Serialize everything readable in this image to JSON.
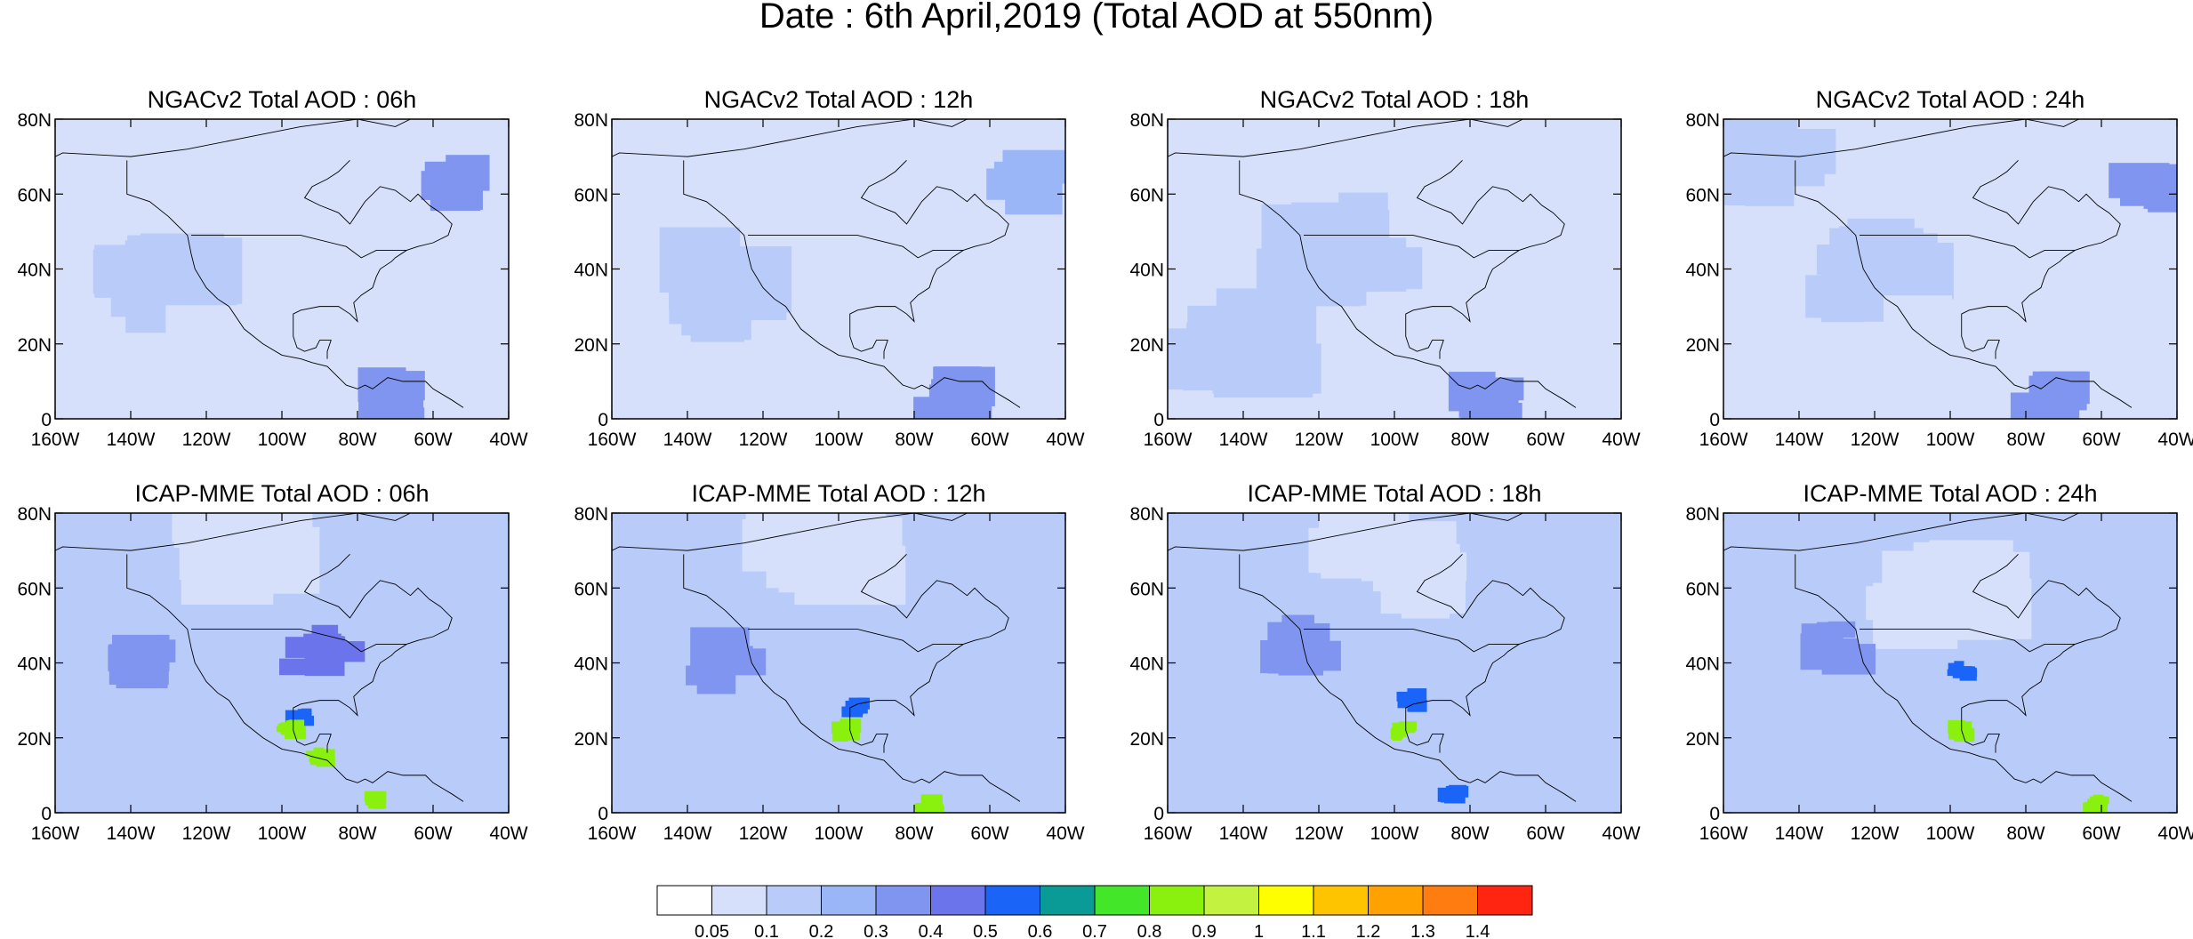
{
  "figure": {
    "title": "Date : 6th April,2019 (Total AOD at 550nm)"
  },
  "axes": {
    "lat_ticks": [
      "80N",
      "60N",
      "40N",
      "20N",
      "0"
    ],
    "lon_ticks": [
      "160W",
      "140W",
      "120W",
      "100W",
      "80W",
      "60W",
      "40W"
    ],
    "lat_range": [
      0,
      80
    ],
    "lon_range": [
      -160,
      -40
    ]
  },
  "panels": [
    {
      "title": "NGACv2 Total AOD : 06h",
      "model": "NGACv2",
      "lead": "06h"
    },
    {
      "title": "NGACv2 Total AOD : 12h",
      "model": "NGACv2",
      "lead": "12h"
    },
    {
      "title": "NGACv2 Total AOD : 18h",
      "model": "NGACv2",
      "lead": "18h"
    },
    {
      "title": "NGACv2 Total AOD : 24h",
      "model": "NGACv2",
      "lead": "24h"
    },
    {
      "title": "ICAP-MME Total AOD : 06h",
      "model": "ICAP-MME",
      "lead": "06h"
    },
    {
      "title": "ICAP-MME Total AOD : 12h",
      "model": "ICAP-MME",
      "lead": "12h"
    },
    {
      "title": "ICAP-MME Total AOD : 18h",
      "model": "ICAP-MME",
      "lead": "18h"
    },
    {
      "title": "ICAP-MME Total AOD : 24h",
      "model": "ICAP-MME",
      "lead": "24h"
    }
  ],
  "colorbar": {
    "labels": [
      "0.05",
      "0.1",
      "0.2",
      "0.3",
      "0.4",
      "0.5",
      "0.6",
      "0.7",
      "0.8",
      "0.9",
      "1",
      "1.1",
      "1.2",
      "1.3",
      "1.4"
    ],
    "colors": [
      "#ffffff",
      "#d6e0fb",
      "#b9cbf8",
      "#9bb6f6",
      "#8095f0",
      "#6c74ec",
      "#1a64f8",
      "#0a9b96",
      "#44e62a",
      "#8af00e",
      "#c3f241",
      "#fffe00",
      "#ffc400",
      "#ffa100",
      "#ff7d10",
      "#ff2510"
    ]
  },
  "chart_data": {
    "type": "heatmap",
    "title": "Date : 6th April,2019 (Total AOD at 550nm)",
    "variable": "Total AOD at 550nm",
    "x_ticks": [
      "160W",
      "140W",
      "120W",
      "100W",
      "80W",
      "60W",
      "40W"
    ],
    "y_ticks": [
      "80N",
      "60N",
      "40N",
      "20N",
      "0"
    ],
    "xlim": [
      -160,
      -40
    ],
    "ylim": [
      0,
      80
    ],
    "levels": [
      0.05,
      0.1,
      0.2,
      0.3,
      0.4,
      0.5,
      0.6,
      0.7,
      0.8,
      0.9,
      1,
      1.1,
      1.2,
      1.3,
      1.4
    ],
    "panels": [
      {
        "name": "NGACv2 Total AOD : 06h",
        "features": [
          {
            "lon": -140,
            "lat": 65,
            "aod": 0.05
          },
          {
            "lon": -100,
            "lat": 60,
            "aod": 0.05
          },
          {
            "lon": -130,
            "lat": 35,
            "aod": 0.15
          },
          {
            "lon": -70,
            "lat": 45,
            "aod": 0.05
          },
          {
            "lon": -55,
            "lat": 62,
            "aod": 0.3
          },
          {
            "lon": -110,
            "lat": 15,
            "aod": 0.05
          },
          {
            "lon": -70,
            "lat": 5,
            "aod": 0.3
          }
        ]
      },
      {
        "name": "NGACv2 Total AOD : 12h",
        "features": [
          {
            "lon": -125,
            "lat": 68,
            "aod": 0.05
          },
          {
            "lon": -130,
            "lat": 35,
            "aod": 0.15
          },
          {
            "lon": -60,
            "lat": 35,
            "aod": 0.05
          },
          {
            "lon": -50,
            "lat": 63,
            "aod": 0.25
          },
          {
            "lon": -110,
            "lat": 12,
            "aod": 0.05
          },
          {
            "lon": -72,
            "lat": 5,
            "aod": 0.3
          }
        ]
      },
      {
        "name": "NGACv2 Total AOD : 18h",
        "features": [
          {
            "lon": -140,
            "lat": 70,
            "aod": 0.05
          },
          {
            "lon": -115,
            "lat": 45,
            "aod": 0.15
          },
          {
            "lon": -140,
            "lat": 20,
            "aod": 0.15
          },
          {
            "lon": -55,
            "lat": 30,
            "aod": 0.05
          },
          {
            "lon": -75,
            "lat": 5,
            "aod": 0.3
          }
        ]
      },
      {
        "name": "NGACv2 Total AOD : 24h",
        "features": [
          {
            "lon": -150,
            "lat": 70,
            "aod": 0.1
          },
          {
            "lon": -120,
            "lat": 40,
            "aod": 0.15
          },
          {
            "lon": -100,
            "lat": 20,
            "aod": 0.05
          },
          {
            "lon": -45,
            "lat": 62,
            "aod": 0.3
          },
          {
            "lon": -75,
            "lat": 5,
            "aod": 0.3
          }
        ]
      },
      {
        "name": "ICAP-MME Total AOD : 06h",
        "features": [
          {
            "lon": -110,
            "lat": 70,
            "aod": 0.05
          },
          {
            "lon": -135,
            "lat": 40,
            "aod": 0.3
          },
          {
            "lon": -95,
            "lat": 25,
            "aod": 0.5
          },
          {
            "lon": -98,
            "lat": 22,
            "aod": 0.85
          },
          {
            "lon": -90,
            "lat": 15,
            "aod": 0.85
          },
          {
            "lon": -75,
            "lat": 3,
            "aod": 0.85
          },
          {
            "lon": -90,
            "lat": 43,
            "aod": 0.4
          }
        ]
      },
      {
        "name": "ICAP-MME Total AOD : 12h",
        "features": [
          {
            "lon": -105,
            "lat": 70,
            "aod": 0.05
          },
          {
            "lon": -130,
            "lat": 40,
            "aod": 0.3
          },
          {
            "lon": -95,
            "lat": 28,
            "aod": 0.5
          },
          {
            "lon": -98,
            "lat": 22,
            "aod": 0.85
          },
          {
            "lon": -76,
            "lat": 2,
            "aod": 0.85
          }
        ]
      },
      {
        "name": "ICAP-MME Total AOD : 18h",
        "features": [
          {
            "lon": -100,
            "lat": 65,
            "aod": 0.05
          },
          {
            "lon": -125,
            "lat": 45,
            "aod": 0.3
          },
          {
            "lon": -95,
            "lat": 30,
            "aod": 0.5
          },
          {
            "lon": -98,
            "lat": 22,
            "aod": 0.85
          },
          {
            "lon": -85,
            "lat": 5,
            "aod": 0.5
          }
        ]
      },
      {
        "name": "ICAP-MME Total AOD : 24h",
        "features": [
          {
            "lon": -100,
            "lat": 60,
            "aod": 0.05
          },
          {
            "lon": -130,
            "lat": 45,
            "aod": 0.3
          },
          {
            "lon": -97,
            "lat": 38,
            "aod": 0.5
          },
          {
            "lon": -98,
            "lat": 22,
            "aod": 0.85
          },
          {
            "lon": -62,
            "lat": 2,
            "aod": 0.85
          }
        ]
      }
    ]
  }
}
